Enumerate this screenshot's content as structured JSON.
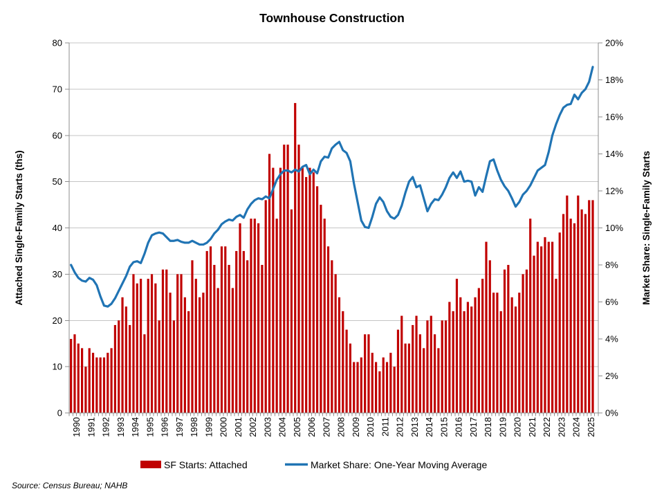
{
  "title": "Townhouse Construction",
  "source_note": "Source: Census Bureau; NAHB",
  "colors": {
    "bar": "#C00000",
    "line": "#2074B4",
    "gridline": "#C4C4C4",
    "axis_line": "#8C8C8C"
  },
  "legend": {
    "bar_label": "SF Starts: Attached",
    "line_label": "Market Share: One-Year Moving Average"
  },
  "chart_data": {
    "type": "bar",
    "title": "Townhouse Construction",
    "left_axis": {
      "title": "Attached Single-Family Starts (ths)",
      "min": 0,
      "max": 80,
      "step": 10
    },
    "right_axis": {
      "title": "Market Share: Single-Family Starts",
      "min": 0,
      "max": 20,
      "step": 2,
      "suffix": "%"
    },
    "x_axis": {
      "first_year": 1990,
      "last_year": 2025,
      "quarters_per_year": 4,
      "grid": "horizontal-only",
      "legend_position": "bottom"
    },
    "series": [
      {
        "name": "SF Starts: Attached",
        "type": "bar",
        "axis": "left",
        "color": "#C00000",
        "values": [
          16,
          17,
          15,
          14,
          10,
          14,
          13,
          12,
          12,
          12,
          13,
          14,
          19,
          20,
          25,
          23,
          19,
          30,
          28,
          29,
          17,
          29,
          30,
          28,
          20,
          31,
          31,
          26,
          20,
          30,
          30,
          25,
          22,
          33,
          29,
          25,
          26,
          35,
          36,
          32,
          27,
          36,
          36,
          32,
          27,
          35,
          41,
          35,
          33,
          42,
          42,
          41,
          32,
          46,
          56,
          53,
          42,
          53,
          58,
          58,
          44,
          67,
          58,
          53,
          51,
          53,
          52,
          49,
          45,
          42,
          36,
          33,
          30,
          25,
          22,
          18,
          15,
          11,
          11,
          12,
          17,
          17,
          13,
          11,
          9,
          12,
          11,
          13,
          10,
          18,
          21,
          15,
          15,
          19,
          21,
          17,
          14,
          20,
          21,
          17,
          14,
          20,
          20,
          24,
          22,
          29,
          25,
          22,
          24,
          23,
          25,
          27,
          29,
          37,
          33,
          26,
          26,
          22,
          31,
          32,
          25,
          23,
          26,
          30,
          31,
          42,
          34,
          37,
          36,
          38,
          37,
          37,
          29,
          39,
          43,
          47,
          42,
          41,
          47,
          44,
          43,
          46,
          46
        ]
      },
      {
        "name": "Market Share: One-Year Moving Average",
        "type": "line",
        "axis": "right",
        "color": "#2074B4",
        "values": [
          8.0,
          7.6,
          7.3,
          7.15,
          7.1,
          7.3,
          7.2,
          6.9,
          6.3,
          5.8,
          5.75,
          5.9,
          6.2,
          6.6,
          7.0,
          7.4,
          7.9,
          8.15,
          8.2,
          8.1,
          8.6,
          9.2,
          9.6,
          9.7,
          9.75,
          9.7,
          9.5,
          9.3,
          9.3,
          9.35,
          9.25,
          9.2,
          9.2,
          9.3,
          9.2,
          9.1,
          9.1,
          9.2,
          9.4,
          9.7,
          9.9,
          10.2,
          10.35,
          10.45,
          10.4,
          10.6,
          10.7,
          10.55,
          11.0,
          11.3,
          11.5,
          11.6,
          11.55,
          11.7,
          11.6,
          12.1,
          12.6,
          12.9,
          13.1,
          13.1,
          13.0,
          13.15,
          13.05,
          13.3,
          13.4,
          12.9,
          13.15,
          12.95,
          13.6,
          13.85,
          13.8,
          14.3,
          14.5,
          14.65,
          14.2,
          14.05,
          13.6,
          12.4,
          11.4,
          10.4,
          10.05,
          10.0,
          10.6,
          11.3,
          11.65,
          11.4,
          10.9,
          10.6,
          10.5,
          10.7,
          11.2,
          11.9,
          12.5,
          12.75,
          12.2,
          12.3,
          11.6,
          10.9,
          11.3,
          11.55,
          11.5,
          11.8,
          12.2,
          12.7,
          13.0,
          12.7,
          13.05,
          12.5,
          12.55,
          12.5,
          11.75,
          12.2,
          11.95,
          12.8,
          13.6,
          13.7,
          13.1,
          12.6,
          12.25,
          12.0,
          11.6,
          11.15,
          11.4,
          11.8,
          12.0,
          12.3,
          12.7,
          13.1,
          13.25,
          13.4,
          14.1,
          15.0,
          15.6,
          16.1,
          16.5,
          16.65,
          16.7,
          17.2,
          16.95,
          17.3,
          17.5,
          17.9,
          18.7
        ]
      }
    ]
  }
}
